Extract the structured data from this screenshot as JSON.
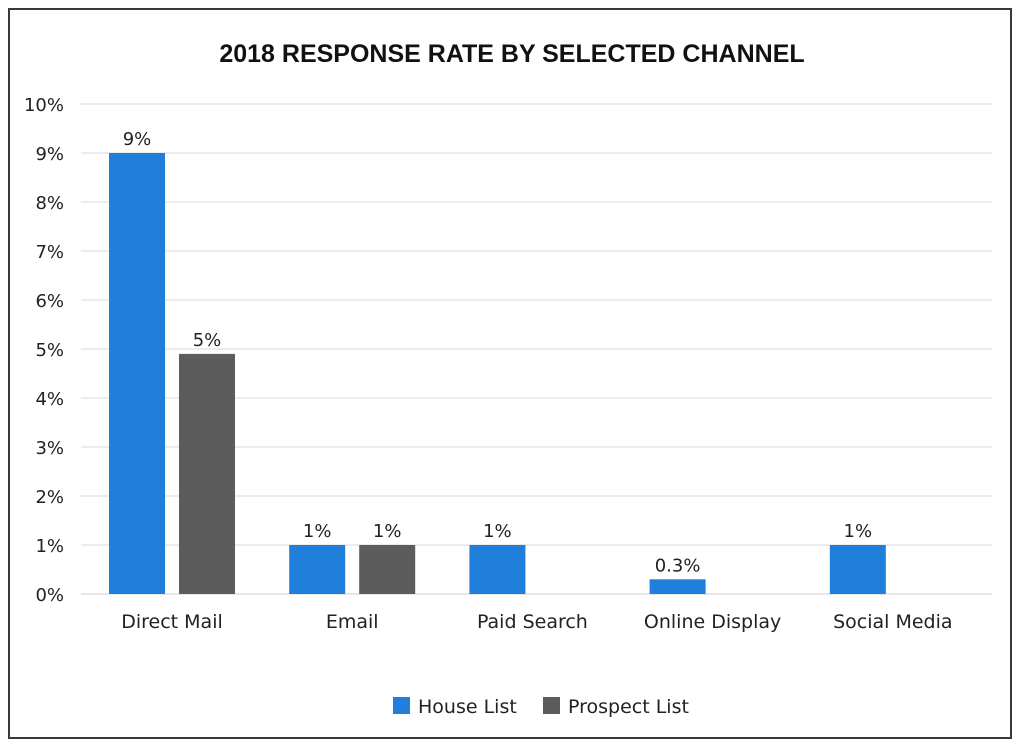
{
  "chart_data": {
    "type": "bar",
    "title": "2018 RESPONSE RATE BY SELECTED CHANNEL",
    "categories": [
      "Direct Mail",
      "Email",
      "Paid Search",
      "Online Display",
      "Social Media"
    ],
    "series": [
      {
        "name": "House List",
        "color": "#1f7fdb",
        "values": [
          9,
          1,
          1,
          0.3,
          1
        ],
        "labels": [
          "9%",
          "1%",
          "1%",
          "0.3%",
          "1%"
        ]
      },
      {
        "name": "Prospect List",
        "color": "#5c5c5c",
        "values": [
          4.9,
          1,
          null,
          null,
          null
        ],
        "labels": [
          "5%",
          "1%",
          null,
          null,
          null
        ]
      }
    ],
    "yticks": [
      "0%",
      "1%",
      "2%",
      "3%",
      "4%",
      "5%",
      "6%",
      "7%",
      "8%",
      "9%",
      "10%"
    ],
    "ylim": [
      0,
      10
    ],
    "xlabel": "",
    "ylabel": "",
    "grid": true,
    "legend": "bottom"
  }
}
